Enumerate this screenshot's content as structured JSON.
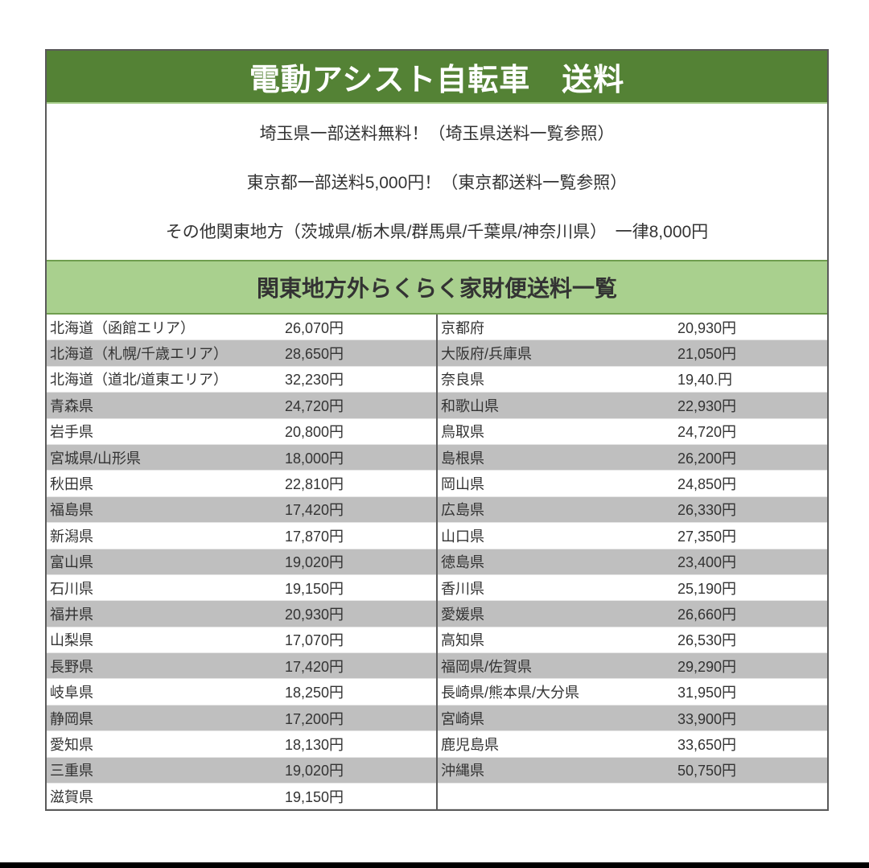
{
  "title": "電動アシスト自転車　送料",
  "info": [
    "埼玉県一部送料無料！（埼玉県送料一覧参照）",
    "東京都一部送料5,000円！（東京都送料一覧参照）",
    "その他関東地方（茨城県/栃木県/群馬県/千葉県/神奈川県）　一律8,000円"
  ],
  "subtitle": "関東地方外らくらく家財便送料一覧",
  "colors": {
    "title_bg": "#548235",
    "subtitle_bg": "#a9d08e",
    "stripe": "#bfbfbf"
  },
  "left": [
    {
      "name": "北海道（函館エリア）",
      "price": "26,070円"
    },
    {
      "name": "北海道（札幌/千歳エリア）",
      "price": "28,650円"
    },
    {
      "name": "北海道（道北/道東エリア）",
      "price": "32,230円"
    },
    {
      "name": "青森県",
      "price": "24,720円"
    },
    {
      "name": "岩手県",
      "price": "20,800円"
    },
    {
      "name": "宮城県/山形県",
      "price": "18,000円"
    },
    {
      "name": "秋田県",
      "price": "22,810円"
    },
    {
      "name": "福島県",
      "price": "17,420円"
    },
    {
      "name": "新潟県",
      "price": "17,870円"
    },
    {
      "name": "富山県",
      "price": "19,020円"
    },
    {
      "name": "石川県",
      "price": "19,150円"
    },
    {
      "name": "福井県",
      "price": "20,930円"
    },
    {
      "name": "山梨県",
      "price": "17,070円"
    },
    {
      "name": "長野県",
      "price": "17,420円"
    },
    {
      "name": "岐阜県",
      "price": "18,250円"
    },
    {
      "name": "静岡県",
      "price": "17,200円"
    },
    {
      "name": "愛知県",
      "price": "18,130円"
    },
    {
      "name": "三重県",
      "price": "19,020円"
    },
    {
      "name": "滋賀県",
      "price": "19,150円"
    }
  ],
  "right": [
    {
      "name": "京都府",
      "price": "20,930円"
    },
    {
      "name": "大阪府/兵庫県",
      "price": "21,050円"
    },
    {
      "name": "奈良県",
      "price": "19,40.円"
    },
    {
      "name": "和歌山県",
      "price": "22,930円"
    },
    {
      "name": "鳥取県",
      "price": "24,720円"
    },
    {
      "name": "島根県",
      "price": "26,200円"
    },
    {
      "name": "岡山県",
      "price": "24,850円"
    },
    {
      "name": "広島県",
      "price": "26,330円"
    },
    {
      "name": "山口県",
      "price": "27,350円"
    },
    {
      "name": "徳島県",
      "price": "23,400円"
    },
    {
      "name": "香川県",
      "price": "25,190円"
    },
    {
      "name": "愛媛県",
      "price": "26,660円"
    },
    {
      "name": "高知県",
      "price": "26,530円"
    },
    {
      "name": "福岡県/佐賀県",
      "price": "29,290円"
    },
    {
      "name": "長崎県/熊本県/大分県",
      "price": "31,950円"
    },
    {
      "name": "宮崎県",
      "price": "33,900円"
    },
    {
      "name": "鹿児島県",
      "price": "33,650円"
    },
    {
      "name": "沖縄県",
      "price": "50,750円"
    },
    {
      "name": "",
      "price": ""
    }
  ]
}
